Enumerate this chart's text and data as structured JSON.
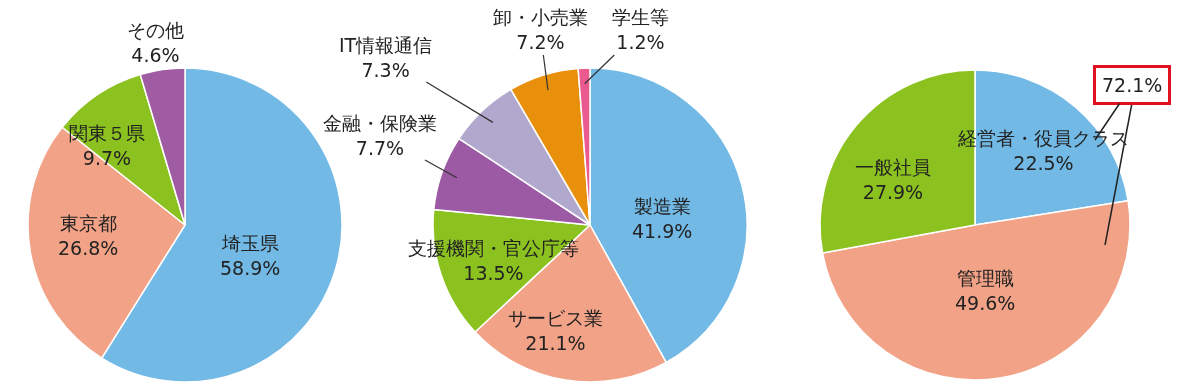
{
  "chart_data": [
    {
      "type": "pie",
      "categories": [
        "埼玉県",
        "東京都",
        "関東５県",
        "その他"
      ],
      "values": [
        58.9,
        26.8,
        9.7,
        4.6
      ],
      "value_labels": [
        "58.9%",
        "26.8%",
        "9.7%",
        "4.6%"
      ],
      "colors": [
        "#72b9e6",
        "#f2a287",
        "#8cc220",
        "#a05ca2"
      ],
      "legend": false
    },
    {
      "type": "pie",
      "categories": [
        "製造業",
        "サービス業",
        "支援機関・官公庁等",
        "金融・保険業",
        "IT情報通信",
        "卸・小売業",
        "学生等"
      ],
      "values": [
        41.9,
        21.1,
        13.5,
        7.7,
        7.3,
        7.2,
        1.2
      ],
      "value_labels": [
        "41.9%",
        "21.1%",
        "13.5%",
        "7.7%",
        "7.3%",
        "7.2%",
        "1.2%"
      ],
      "colors": [
        "#72b9e6",
        "#f2a287",
        "#8cc220",
        "#9b5aa3",
        "#b1a9cd",
        "#e8900c",
        "#ea5a8e"
      ],
      "legend": false
    },
    {
      "type": "pie",
      "categories": [
        "経営者・役員クラス",
        "管理職",
        "一般社員"
      ],
      "values": [
        22.5,
        49.6,
        27.9
      ],
      "value_labels": [
        "22.5%",
        "49.6%",
        "27.9%"
      ],
      "colors": [
        "#72b9e6",
        "#f2a287",
        "#8cc220"
      ],
      "legend": false,
      "annotations": [
        "72.1%"
      ]
    }
  ]
}
